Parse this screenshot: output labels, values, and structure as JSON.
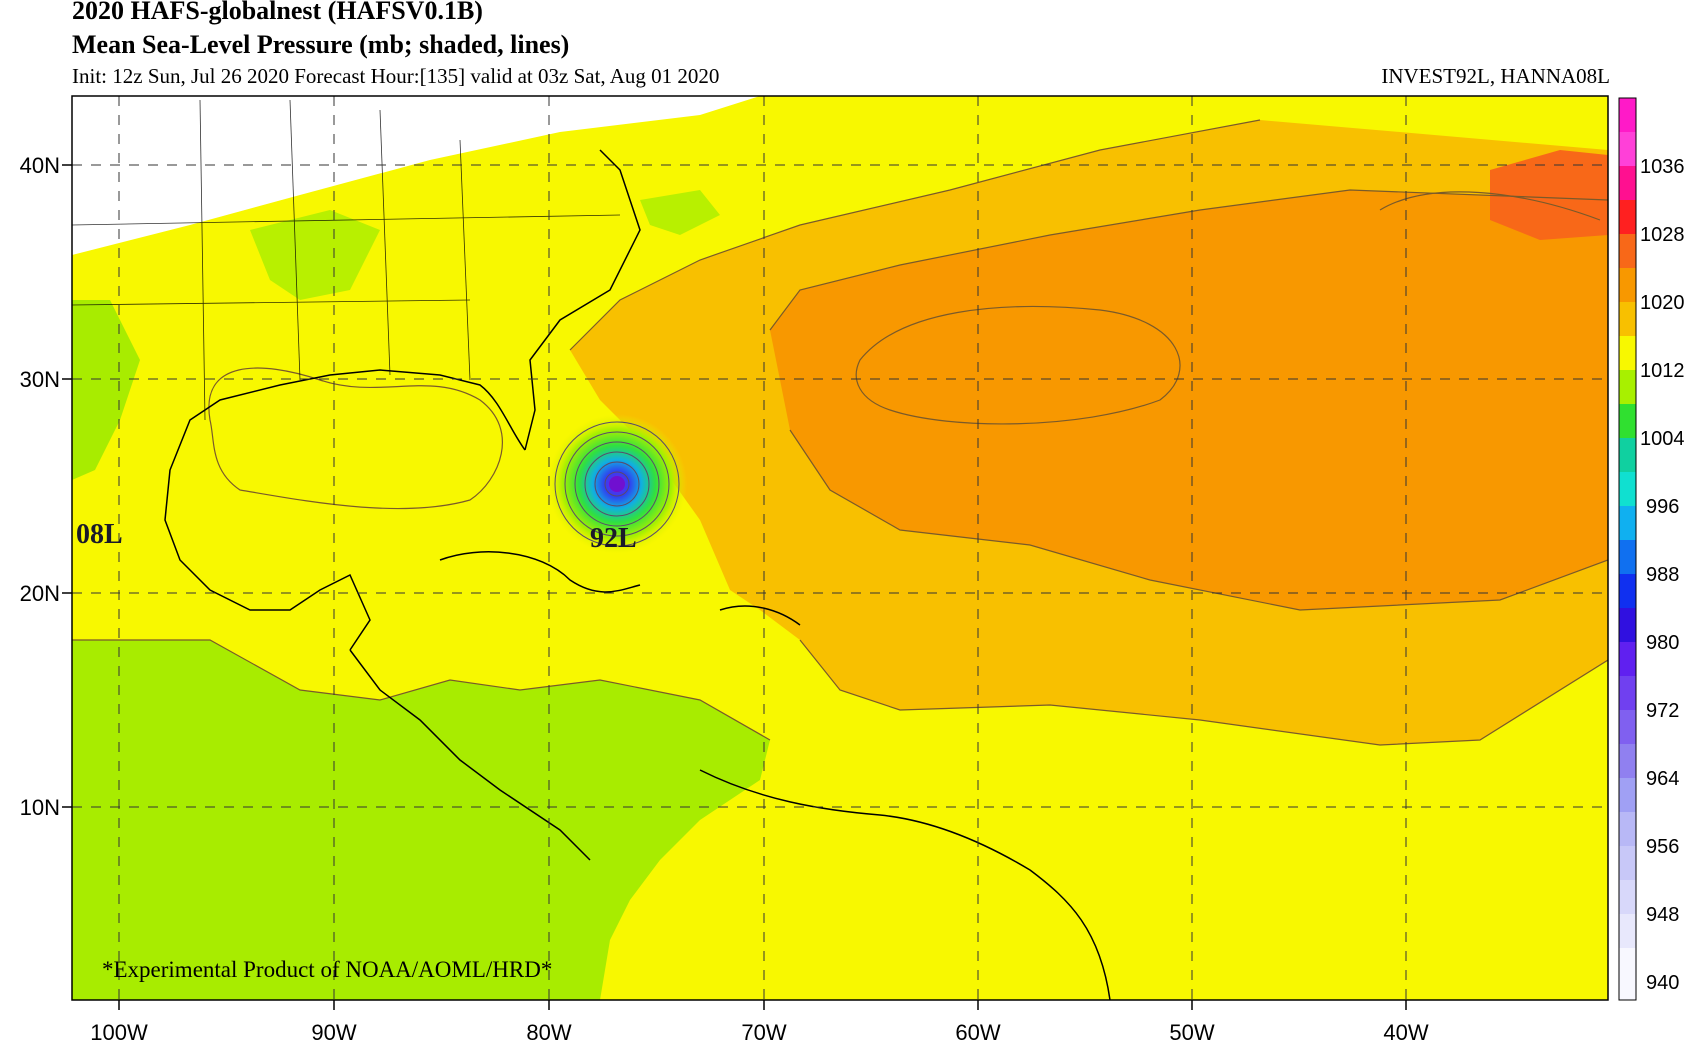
{
  "header": {
    "title": "2020 HAFS-globalnest (HAFSV0.1B)",
    "subtitle": "Mean Sea-Level Pressure (mb; shaded, lines)",
    "init_line": "Init: 12z Sun, Jul 26 2020  Forecast Hour:[135]  valid at 03z Sat, Aug 01 2020",
    "storms": "INVEST92L, HANNA08L"
  },
  "map": {
    "lat_labels": [
      "40N",
      "30N",
      "20N",
      "10N"
    ],
    "lon_labels": [
      "100W",
      "90W",
      "80W",
      "70W",
      "60W",
      "50W",
      "40W"
    ],
    "storm_labels": [
      "08L",
      "92L"
    ],
    "footer_note": "*Experimental Product of NOAA/AOML/HRD*"
  },
  "colorbar": {
    "labels": [
      "1036",
      "1028",
      "1020",
      "1012",
      "1004",
      "996",
      "988",
      "980",
      "972",
      "964",
      "956",
      "948",
      "940"
    ],
    "colors": {
      "top": "#ff1ac8",
      "1028": "#ff2020",
      "1020": "#f86818",
      "1012": "#f8b000",
      "1004": "#f0f000",
      "996": "#a8f000",
      "988": "#30e030",
      "980": "#10e0d0",
      "972": "#10a0f0",
      "964": "#2050f0",
      "956": "#4020e0",
      "948": "#7030f0",
      "940": "#9080f0",
      "bottom": "#f4f4ff"
    }
  },
  "colors": {
    "green_low": "#a8ec00",
    "yellow": "#f8f800",
    "light_orange": "#f8c000",
    "orange": "#f89800",
    "dark_orange": "#f86818"
  }
}
